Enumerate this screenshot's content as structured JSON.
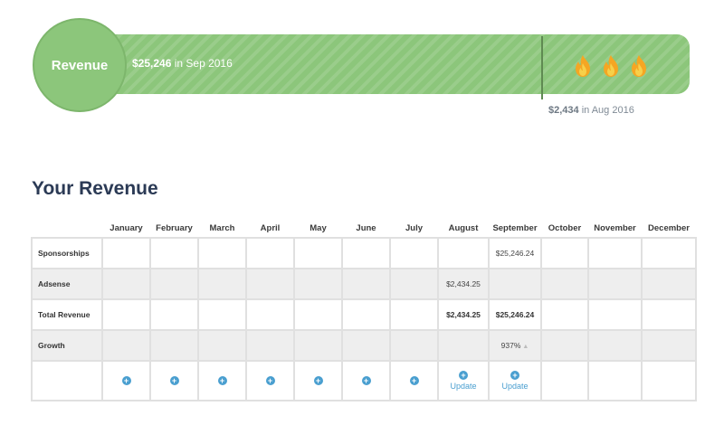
{
  "banner": {
    "label": "Revenue",
    "current_amount": "$25,246",
    "current_suffix": " in Sep 2016",
    "previous_amount": "$2,434",
    "previous_suffix": " in Aug 2016",
    "fire_count": 3,
    "bar_color": "#8cc67b",
    "icons": [
      "fire-icon",
      "fire-icon",
      "fire-icon"
    ]
  },
  "heading": "Your Revenue",
  "table": {
    "months": [
      "January",
      "February",
      "March",
      "April",
      "May",
      "June",
      "July",
      "August",
      "September",
      "October",
      "November",
      "December"
    ],
    "rows": [
      {
        "label": "Sponsorships",
        "values": [
          "",
          "",
          "",
          "",
          "",
          "",
          "",
          "",
          "$25,246.24",
          "",
          "",
          ""
        ]
      },
      {
        "label": "Adsense",
        "values": [
          "",
          "",
          "",
          "",
          "",
          "",
          "",
          "$2,434.25",
          "",
          "",
          "",
          ""
        ]
      },
      {
        "label": "Total Revenue",
        "values": [
          "",
          "",
          "",
          "",
          "",
          "",
          "",
          "$2,434.25",
          "$25,246.24",
          "",
          "",
          ""
        ]
      },
      {
        "label": "Growth",
        "values": [
          "",
          "",
          "",
          "",
          "",
          "",
          "",
          "",
          "937%",
          "",
          "",
          ""
        ]
      }
    ],
    "update_label": "Update",
    "update_months": [
      "August",
      "September"
    ],
    "accent_color": "#4a9fd0"
  }
}
